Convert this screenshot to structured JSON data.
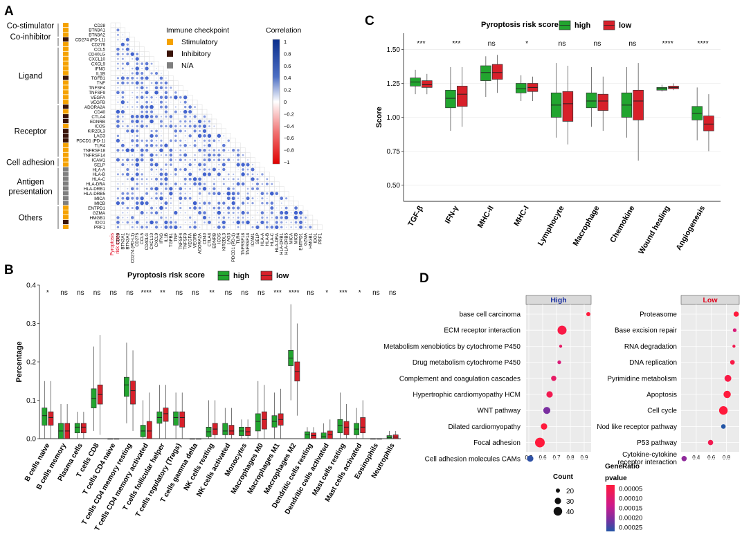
{
  "panels": {
    "A": "A",
    "B": "B",
    "C": "C",
    "D": "D"
  },
  "panelA": {
    "categories": [
      {
        "label": "Co-stimulator"
      },
      {
        "label": "Co-inhibitor"
      },
      {
        "label": "Ligand"
      },
      {
        "label": "Receptor"
      },
      {
        "label": "Cell adhesion"
      },
      {
        "label": "Antigen\npresentation"
      },
      {
        "label": "Others"
      }
    ],
    "genes": [
      "CD28",
      "BTN3A1",
      "BTN3A2",
      "CD274 (PD-L1)",
      "CD276",
      "CCL5",
      "CD40LG",
      "CXCL10",
      "CXCL9",
      "IFNG",
      "IL1B",
      "TGFB1",
      "TNF",
      "TNFSF4",
      "TNFSF9",
      "VEGFA",
      "VEGFB",
      "ADORA2A",
      "CD40",
      "CTLA4",
      "EDNRB",
      "ICOS",
      "KIR2DL3",
      "LAG3",
      "PDCD1 (PD-1)",
      "TLR4",
      "TNFRSF18",
      "TNFRSF14",
      "ICAM1",
      "SELP",
      "HLA-A",
      "HLA-B",
      "HLA-C",
      "HLA-DRA",
      "HLA-DRB1",
      "HLA-DRB5",
      "MICA",
      "MICB",
      "ENTPD1",
      "GZMA",
      "HMGB1",
      "IDO1",
      "PRF1"
    ],
    "gene_types": [
      "S",
      "S",
      "S",
      "I",
      "S",
      "S",
      "S",
      "S",
      "S",
      "S",
      "S",
      "I",
      "S",
      "S",
      "S",
      "S",
      "S",
      "I",
      "S",
      "I",
      "I",
      "S",
      "I",
      "I",
      "I",
      "S",
      "S",
      "S",
      "S",
      "S",
      "N",
      "N",
      "N",
      "N",
      "N",
      "N",
      "N",
      "N",
      "S",
      "S",
      "S",
      "I",
      "S"
    ],
    "first_label": "Pyroptosis\nrisk score",
    "legend_title": "Immune checkpoint",
    "legend_items": [
      {
        "label": "Stimulatory",
        "color": "#f5a200"
      },
      {
        "label": "Inhibitory",
        "color": "#3a1408"
      },
      {
        "label": "N/A",
        "color": "#7f7f7f"
      }
    ],
    "colorbar_title": "Correlation",
    "colorbar_ticks": [
      "1",
      "0.8",
      "0.6",
      "0.4",
      "0.2",
      "0",
      "−0.2",
      "−0.4",
      "−0.6",
      "−0.8",
      "−1"
    ]
  },
  "panelB": {
    "chart_data": {
      "type": "box",
      "title": "Pyroptosis risk score",
      "ylabel": "Percentage",
      "ylim": [
        0,
        0.4
      ],
      "yticks": [
        "0.0",
        "0.1",
        "0.2",
        "0.3",
        "0.4"
      ],
      "legend": [
        {
          "label": "high",
          "color": "#22a52f"
        },
        {
          "label": "low",
          "color": "#d7202a"
        }
      ],
      "categories": [
        "B cells naive",
        "B cells memory",
        "Plasma cells",
        "T cells CD8",
        "T cells CD4 naive",
        "T cells CD4 memory resting",
        "T cells CD4 memory activated",
        "T cells follicular helper",
        "T cells regulatory (Tregs)",
        "T cells gamma delta",
        "NK cells resting",
        "NK cells activated",
        "Monocytes",
        "Macrophages M0",
        "Macrophages M1",
        "Macrophages M2",
        "Dendritic cells resting",
        "Dendritic cells activated",
        "Mast cells resting",
        "Mast cells activated",
        "Eosinophils",
        "Neutrophils"
      ],
      "significance": [
        "*",
        "ns",
        "ns",
        "ns",
        "ns",
        "ns",
        "****",
        "**",
        "ns",
        "ns",
        "**",
        "ns",
        "ns",
        "ns",
        "***",
        "****",
        "ns",
        "*",
        "***",
        "*",
        "ns",
        "ns"
      ],
      "series": [
        {
          "name": "high",
          "boxes": [
            [
              0.0,
              0.035,
              0.06,
              0.08,
              0.15
            ],
            [
              0.0,
              0.0,
              0.02,
              0.04,
              0.09
            ],
            [
              0.0,
              0.015,
              0.03,
              0.04,
              0.07
            ],
            [
              0.02,
              0.08,
              0.105,
              0.13,
              0.24
            ],
            [
              0.0,
              0.0,
              0.0,
              0.0,
              0.0
            ],
            [
              0.04,
              0.11,
              0.14,
              0.16,
              0.25
            ],
            [
              0.0,
              0.005,
              0.02,
              0.035,
              0.1
            ],
            [
              0.0,
              0.04,
              0.055,
              0.07,
              0.14
            ],
            [
              0.0,
              0.035,
              0.055,
              0.07,
              0.12
            ],
            [
              0.0,
              0.0,
              0.0,
              0.0,
              0.0
            ],
            [
              0.0,
              0.005,
              0.018,
              0.03,
              0.1
            ],
            [
              0.0,
              0.01,
              0.02,
              0.04,
              0.08
            ],
            [
              0.0,
              0.008,
              0.02,
              0.03,
              0.05
            ],
            [
              0.0,
              0.02,
              0.045,
              0.065,
              0.15
            ],
            [
              0.0,
              0.03,
              0.045,
              0.06,
              0.12
            ],
            [
              0.1,
              0.19,
              0.21,
              0.23,
              0.35
            ],
            [
              0.0,
              0.0,
              0.01,
              0.018,
              0.03
            ],
            [
              0.0,
              0.0,
              0.005,
              0.015,
              0.04
            ],
            [
              0.0,
              0.015,
              0.035,
              0.05,
              0.12
            ],
            [
              0.0,
              0.01,
              0.025,
              0.04,
              0.08
            ],
            [
              0.0,
              0.0,
              0.0,
              0.0,
              0.0
            ],
            [
              0.0,
              0.0,
              0.003,
              0.008,
              0.02
            ]
          ]
        },
        {
          "name": "low",
          "boxes": [
            [
              0.0,
              0.035,
              0.055,
              0.07,
              0.15
            ],
            [
              0.0,
              0.0,
              0.02,
              0.04,
              0.09
            ],
            [
              0.0,
              0.015,
              0.03,
              0.04,
              0.07
            ],
            [
              0.01,
              0.09,
              0.115,
              0.14,
              0.27
            ],
            [
              0.0,
              0.0,
              0.0,
              0.0,
              0.0
            ],
            [
              0.02,
              0.09,
              0.125,
              0.15,
              0.23
            ],
            [
              0.0,
              0.0,
              0.02,
              0.045,
              0.12
            ],
            [
              0.0,
              0.045,
              0.065,
              0.08,
              0.14
            ],
            [
              0.0,
              0.03,
              0.055,
              0.07,
              0.12
            ],
            [
              0.0,
              0.0,
              0.0,
              0.0,
              0.0
            ],
            [
              0.0,
              0.01,
              0.025,
              0.04,
              0.1
            ],
            [
              0.0,
              0.01,
              0.02,
              0.035,
              0.08
            ],
            [
              0.0,
              0.008,
              0.018,
              0.03,
              0.05
            ],
            [
              0.0,
              0.025,
              0.05,
              0.07,
              0.14
            ],
            [
              0.0,
              0.035,
              0.05,
              0.065,
              0.13
            ],
            [
              0.06,
              0.15,
              0.175,
              0.2,
              0.3
            ],
            [
              0.0,
              0.0,
              0.008,
              0.015,
              0.03
            ],
            [
              0.0,
              0.0,
              0.01,
              0.02,
              0.05
            ],
            [
              0.0,
              0.01,
              0.03,
              0.045,
              0.09
            ],
            [
              0.0,
              0.015,
              0.03,
              0.055,
              0.1
            ],
            [
              0.0,
              0.0,
              0.0,
              0.0,
              0.0
            ],
            [
              0.0,
              0.0,
              0.004,
              0.01,
              0.02
            ]
          ]
        }
      ]
    }
  },
  "panelC": {
    "chart_data": {
      "type": "box",
      "title": "Pyroptosis risk score",
      "ylabel": "Score",
      "ylim": [
        0.38,
        1.62
      ],
      "yticks": [
        "0.50",
        "0.75",
        "1.00",
        "1.25",
        "1.50"
      ],
      "legend": [
        {
          "label": "high",
          "color": "#22a52f"
        },
        {
          "label": "low",
          "color": "#d7202a"
        }
      ],
      "categories": [
        "TGF-β",
        "IFN-γ",
        "MHC-II",
        "MHC-I",
        "Lymphocyte",
        "Macrophage",
        "Chemokine",
        "Wound healing",
        "Angiogenesis"
      ],
      "significance": [
        "***",
        "***",
        "ns",
        "*",
        "ns",
        "ns",
        "ns",
        "****",
        "****"
      ],
      "series": [
        {
          "name": "high",
          "boxes": [
            [
              1.17,
              1.23,
              1.26,
              1.29,
              1.35
            ],
            [
              0.9,
              1.07,
              1.14,
              1.2,
              1.37
            ],
            [
              1.15,
              1.27,
              1.33,
              1.38,
              1.45
            ],
            [
              1.12,
              1.18,
              1.21,
              1.25,
              1.31
            ],
            [
              0.85,
              1.0,
              1.09,
              1.18,
              1.4
            ],
            [
              0.93,
              1.07,
              1.12,
              1.18,
              1.37
            ],
            [
              0.85,
              1.0,
              1.09,
              1.18,
              1.37
            ],
            [
              1.19,
              1.2,
              1.21,
              1.22,
              1.24
            ],
            [
              0.83,
              0.98,
              1.03,
              1.08,
              1.22
            ]
          ]
        },
        {
          "name": "low",
          "boxes": [
            [
              1.17,
              1.22,
              1.24,
              1.27,
              1.32
            ],
            [
              0.93,
              1.08,
              1.17,
              1.23,
              1.37
            ],
            [
              1.18,
              1.28,
              1.33,
              1.39,
              1.46
            ],
            [
              1.12,
              1.19,
              1.22,
              1.25,
              1.3
            ],
            [
              0.8,
              0.97,
              1.1,
              1.19,
              1.38
            ],
            [
              0.9,
              1.05,
              1.12,
              1.17,
              1.3
            ],
            [
              0.68,
              0.98,
              1.12,
              1.2,
              1.4
            ],
            [
              1.2,
              1.21,
              1.22,
              1.23,
              1.25
            ],
            [
              0.75,
              0.9,
              0.95,
              1.01,
              1.17
            ]
          ]
        }
      ]
    }
  },
  "panelD": {
    "chart_data": {
      "type": "scatter",
      "xlabel": "GeneRatio",
      "facets": [
        {
          "title": "High",
          "xticks": [
            "0.5",
            "0.6",
            "0.7",
            "0.8",
            "0.9"
          ],
          "xlim": [
            0.48,
            0.95
          ],
          "points": [
            {
              "term": "base cell carcinoma",
              "ratio": 0.93,
              "count": 20,
              "p": 4e-05
            },
            {
              "term": "ECM receptor interaction",
              "ratio": 0.74,
              "count": 42,
              "p": 5e-05
            },
            {
              "term": "Metabolism xenobiotics by cytochrome P450",
              "ratio": 0.73,
              "count": 15,
              "p": 8e-05
            },
            {
              "term": "Drug metabolism cytochrome P450",
              "ratio": 0.72,
              "count": 18,
              "p": 0.0001
            },
            {
              "term": "Complement and coagulation cascades",
              "ratio": 0.68,
              "count": 25,
              "p": 8e-05
            },
            {
              "term": "Hypertrophic cardiomyopathy HCM",
              "ratio": 0.65,
              "count": 30,
              "p": 6e-05
            },
            {
              "term": "WNT pathway",
              "ratio": 0.63,
              "count": 33,
              "p": 0.0002
            },
            {
              "term": "Dilated cardiomyopathy",
              "ratio": 0.61,
              "count": 30,
              "p": 4e-05
            },
            {
              "term": "Focal adhesion",
              "ratio": 0.58,
              "count": 45,
              "p": 4e-05
            },
            {
              "term": "Cell adhesion molecules CAMs",
              "ratio": 0.51,
              "count": 30,
              "p": 0.00027
            }
          ]
        },
        {
          "title": "Low",
          "xticks": [
            "0.4",
            "0.6",
            "0.8"
          ],
          "xlim": [
            0.2,
            0.97
          ],
          "points": [
            {
              "term": "Proteasome",
              "ratio": 0.93,
              "count": 25,
              "p": 4e-05
            },
            {
              "term": "Base excision repair",
              "ratio": 0.91,
              "count": 18,
              "p": 0.0001
            },
            {
              "term": "RNA degradation",
              "ratio": 0.9,
              "count": 15,
              "p": 6e-05
            },
            {
              "term": "DNA replication",
              "ratio": 0.88,
              "count": 22,
              "p": 5e-05
            },
            {
              "term": "Pyrimidine metabolism",
              "ratio": 0.82,
              "count": 32,
              "p": 5e-05
            },
            {
              "term": "Apoptosis",
              "ratio": 0.81,
              "count": 34,
              "p": 4e-05
            },
            {
              "term": "Cell cycle",
              "ratio": 0.76,
              "count": 40,
              "p": 4e-05
            },
            {
              "term": "Nod like receptor pathway",
              "ratio": 0.76,
              "count": 22,
              "p": 0.00028
            },
            {
              "term": "P53 pathway",
              "ratio": 0.59,
              "count": 25,
              "p": 6e-05
            },
            {
              "term": "Cytokine-cytokine\nreceptor interaction",
              "ratio": 0.24,
              "count": 25,
              "p": 0.00018
            }
          ]
        }
      ],
      "size_legend": {
        "title": "Count",
        "values": [
          20,
          30,
          40
        ]
      },
      "color_legend": {
        "title": "pvalue",
        "labels": [
          "0.00005",
          "0.00010",
          "0.00015",
          "0.00020",
          "0.00025"
        ]
      }
    }
  }
}
